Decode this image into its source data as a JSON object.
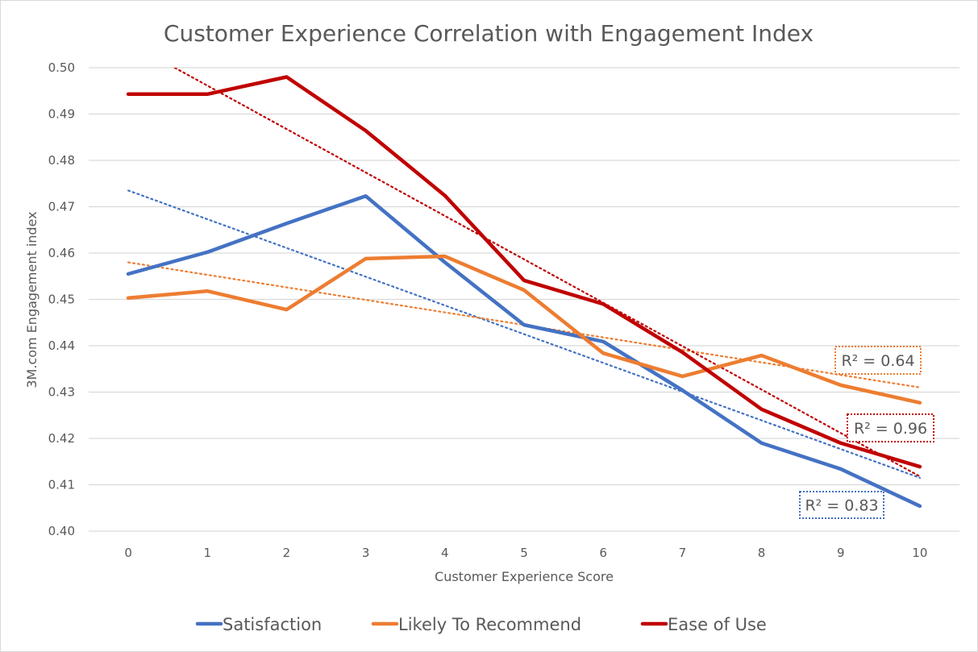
{
  "chart_data": {
    "type": "line",
    "title": "Customer Experience Correlation with Engagement Index",
    "xlabel": "Customer Experience Score",
    "ylabel": "3M.com Engagement index",
    "categories": [
      "0",
      "1",
      "2",
      "3",
      "4",
      "5",
      "6",
      "7",
      "8",
      "9",
      "10"
    ],
    "x": [
      0,
      1,
      2,
      3,
      4,
      5,
      6,
      7,
      8,
      9,
      10
    ],
    "ylim": [
      0.4,
      0.5
    ],
    "yticks": [
      "0.40",
      "0.41",
      "0.42",
      "0.43",
      "0.44",
      "0.45",
      "0.46",
      "0.47",
      "0.48",
      "0.49",
      "0.50"
    ],
    "ytick_values": [
      0.4,
      0.41,
      0.42,
      0.43,
      0.44,
      0.45,
      0.46,
      0.47,
      0.48,
      0.49,
      0.5
    ],
    "grid": true,
    "legend_position": "bottom",
    "series": [
      {
        "name": "Satisfaction",
        "color": "#4472c4",
        "values": [
          0.4555,
          0.4602,
          0.4664,
          0.4723,
          0.458,
          0.4445,
          0.4409,
          0.4304,
          0.419,
          0.4134,
          0.4054
        ],
        "trendline": {
          "type": "linear",
          "start": 0.4735,
          "end": 0.4115,
          "r2_label": "R² = 0.83"
        }
      },
      {
        "name": "Likely To Recommend",
        "color": "#ed7d31",
        "values": [
          0.4503,
          0.4518,
          0.4478,
          0.4588,
          0.4593,
          0.452,
          0.4384,
          0.4334,
          0.4379,
          0.4315,
          0.4277
        ],
        "trendline": {
          "type": "linear",
          "start": 0.458,
          "end": 0.431,
          "r2_label": "R² = 0.64"
        }
      },
      {
        "name": "Ease of Use",
        "color": "#c00000",
        "values": [
          0.4943,
          0.4943,
          0.498,
          0.4864,
          0.4724,
          0.4541,
          0.449,
          0.4386,
          0.4263,
          0.419,
          0.4139
        ],
        "trendline": {
          "type": "linear",
          "start": 0.5055,
          "end": 0.4118,
          "r2_label": "R² = 0.96"
        }
      }
    ]
  }
}
